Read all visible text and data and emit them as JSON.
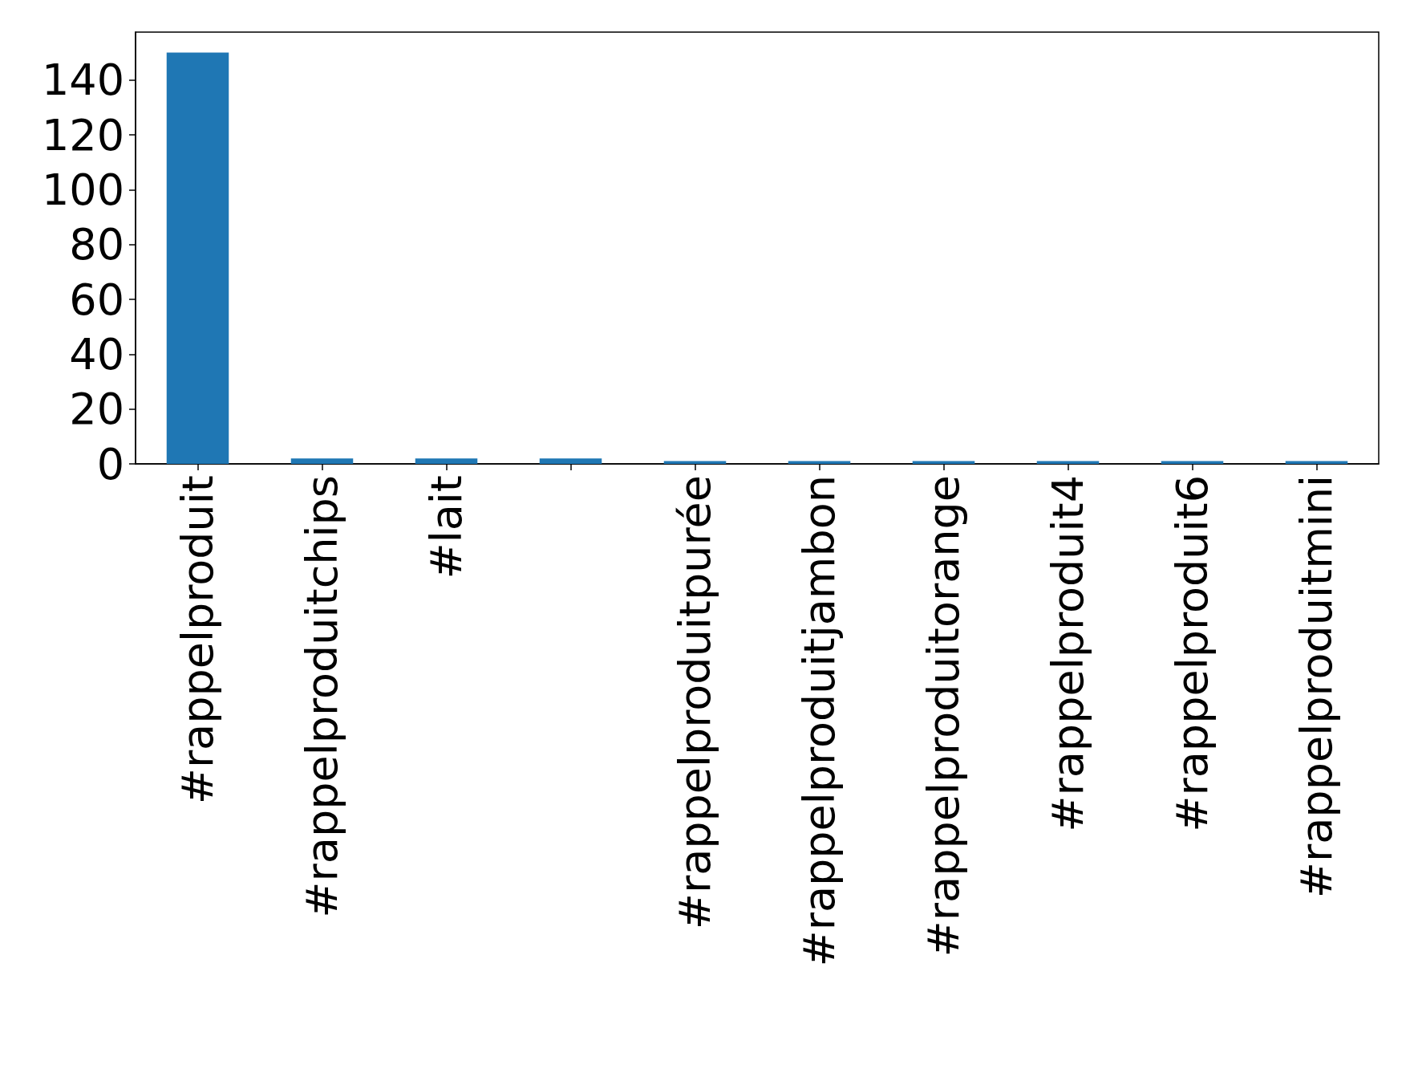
{
  "chart_data": {
    "type": "bar",
    "categories": [
      "#rappelproduit",
      "#rappelproduitchips",
      "#lait",
      null,
      "#rappelproduitpurée",
      "#rappelproduitjambon",
      "#rappelproduitorange",
      "#rappelproduit4",
      "#rappelproduit6",
      "#rappelproduitmini"
    ],
    "values": [
      150,
      2,
      2,
      2,
      1,
      1,
      1,
      1,
      1,
      1
    ],
    "color": "#1f77b4",
    "ylim": [
      0,
      157.5
    ],
    "yticks": [
      0,
      20,
      40,
      60,
      80,
      100,
      120,
      140
    ],
    "grid": false
  }
}
